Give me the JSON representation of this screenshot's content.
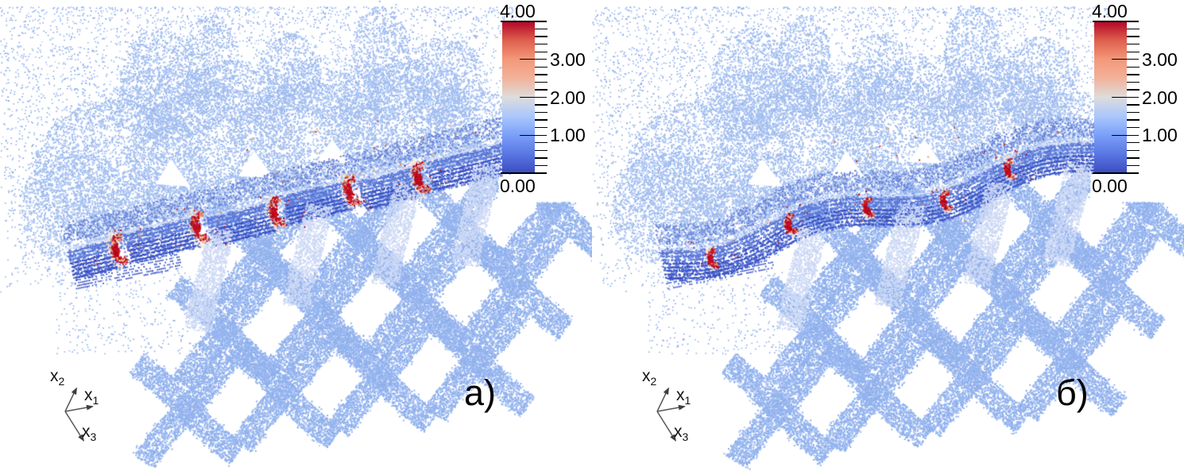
{
  "figure": {
    "background": "#ffffff",
    "panels": [
      {
        "id": "a",
        "label": "а)",
        "seed": 7,
        "band_style": "broken",
        "damage_scale": 1.0
      },
      {
        "id": "b",
        "label": "б)",
        "seed": 13,
        "band_style": "wavy",
        "damage_scale": 0.55
      }
    ],
    "triad": {
      "x1": {
        "base": "x",
        "sub": "1"
      },
      "x2": {
        "base": "x",
        "sub": "2"
      },
      "x3": {
        "base": "x",
        "sub": "3"
      }
    },
    "colorbar": {
      "top_label": "4.00",
      "bottom_label": "0.00",
      "major_ticks": [
        {
          "value": 3,
          "label": "3.00"
        },
        {
          "value": 2,
          "label": "2.00"
        },
        {
          "value": 1,
          "label": "1.00"
        }
      ],
      "range_min": 0,
      "range_max": 4,
      "minor_tick_step": 0.2,
      "gradient_stops": [
        {
          "value": 4.0,
          "color": "#b40426"
        },
        {
          "value": 3.5,
          "color": "#de604d"
        },
        {
          "value": 3.0,
          "color": "#f4987a"
        },
        {
          "value": 2.5,
          "color": "#f2b29a"
        },
        {
          "value": 2.0,
          "color": "#dddddd"
        },
        {
          "value": 1.5,
          "color": "#aac7fc"
        },
        {
          "value": 1.0,
          "color": "#7b9ff9"
        },
        {
          "value": 0.5,
          "color": "#5a76e3"
        },
        {
          "value": 0.0,
          "color": "#3b4cc0"
        }
      ]
    },
    "cloud_palette": {
      "upper_layer": "#a4bff0",
      "scatter": "#8cacec",
      "weave": "#93b3ee",
      "weave_light": "#b7c9f4",
      "band_dark": "#3a52c4",
      "band_mid": "#5d79d8",
      "band_loop": "#6e88da",
      "band_highlight": "#d6dff6",
      "pale_yarn": "#cdd9f5",
      "damage_red": "#bf0c20",
      "damage_orange": "#ea9663",
      "damage_pale": "#f4e5d3"
    }
  },
  "chart_data": {
    "type": "scatter",
    "render": "3D particle (point-cloud) visualization, two views of a woven textile composite; particles colored by a damage/stress field",
    "axes_labels": [
      "x1",
      "x2",
      "x3"
    ],
    "colorbar": {
      "min": 0.0,
      "max": 4.0,
      "tick_labels": [
        "0.00",
        "1.00",
        "2.00",
        "3.00",
        "4.00"
      ],
      "minor_tick_step": 0.2,
      "colormap": "cool-to-warm (blue - white - red)"
    },
    "panels": [
      {
        "label": "а)",
        "red_damage_sites": 5,
        "band_state": "fragmented transverse yarn band"
      },
      {
        "label": "б)",
        "red_damage_sites": 5,
        "band_state": "mostly intact wavy yarn band"
      }
    ],
    "dominant_value_range": [
      0.7,
      1.3
    ],
    "damage_zone_value": 4.0
  }
}
